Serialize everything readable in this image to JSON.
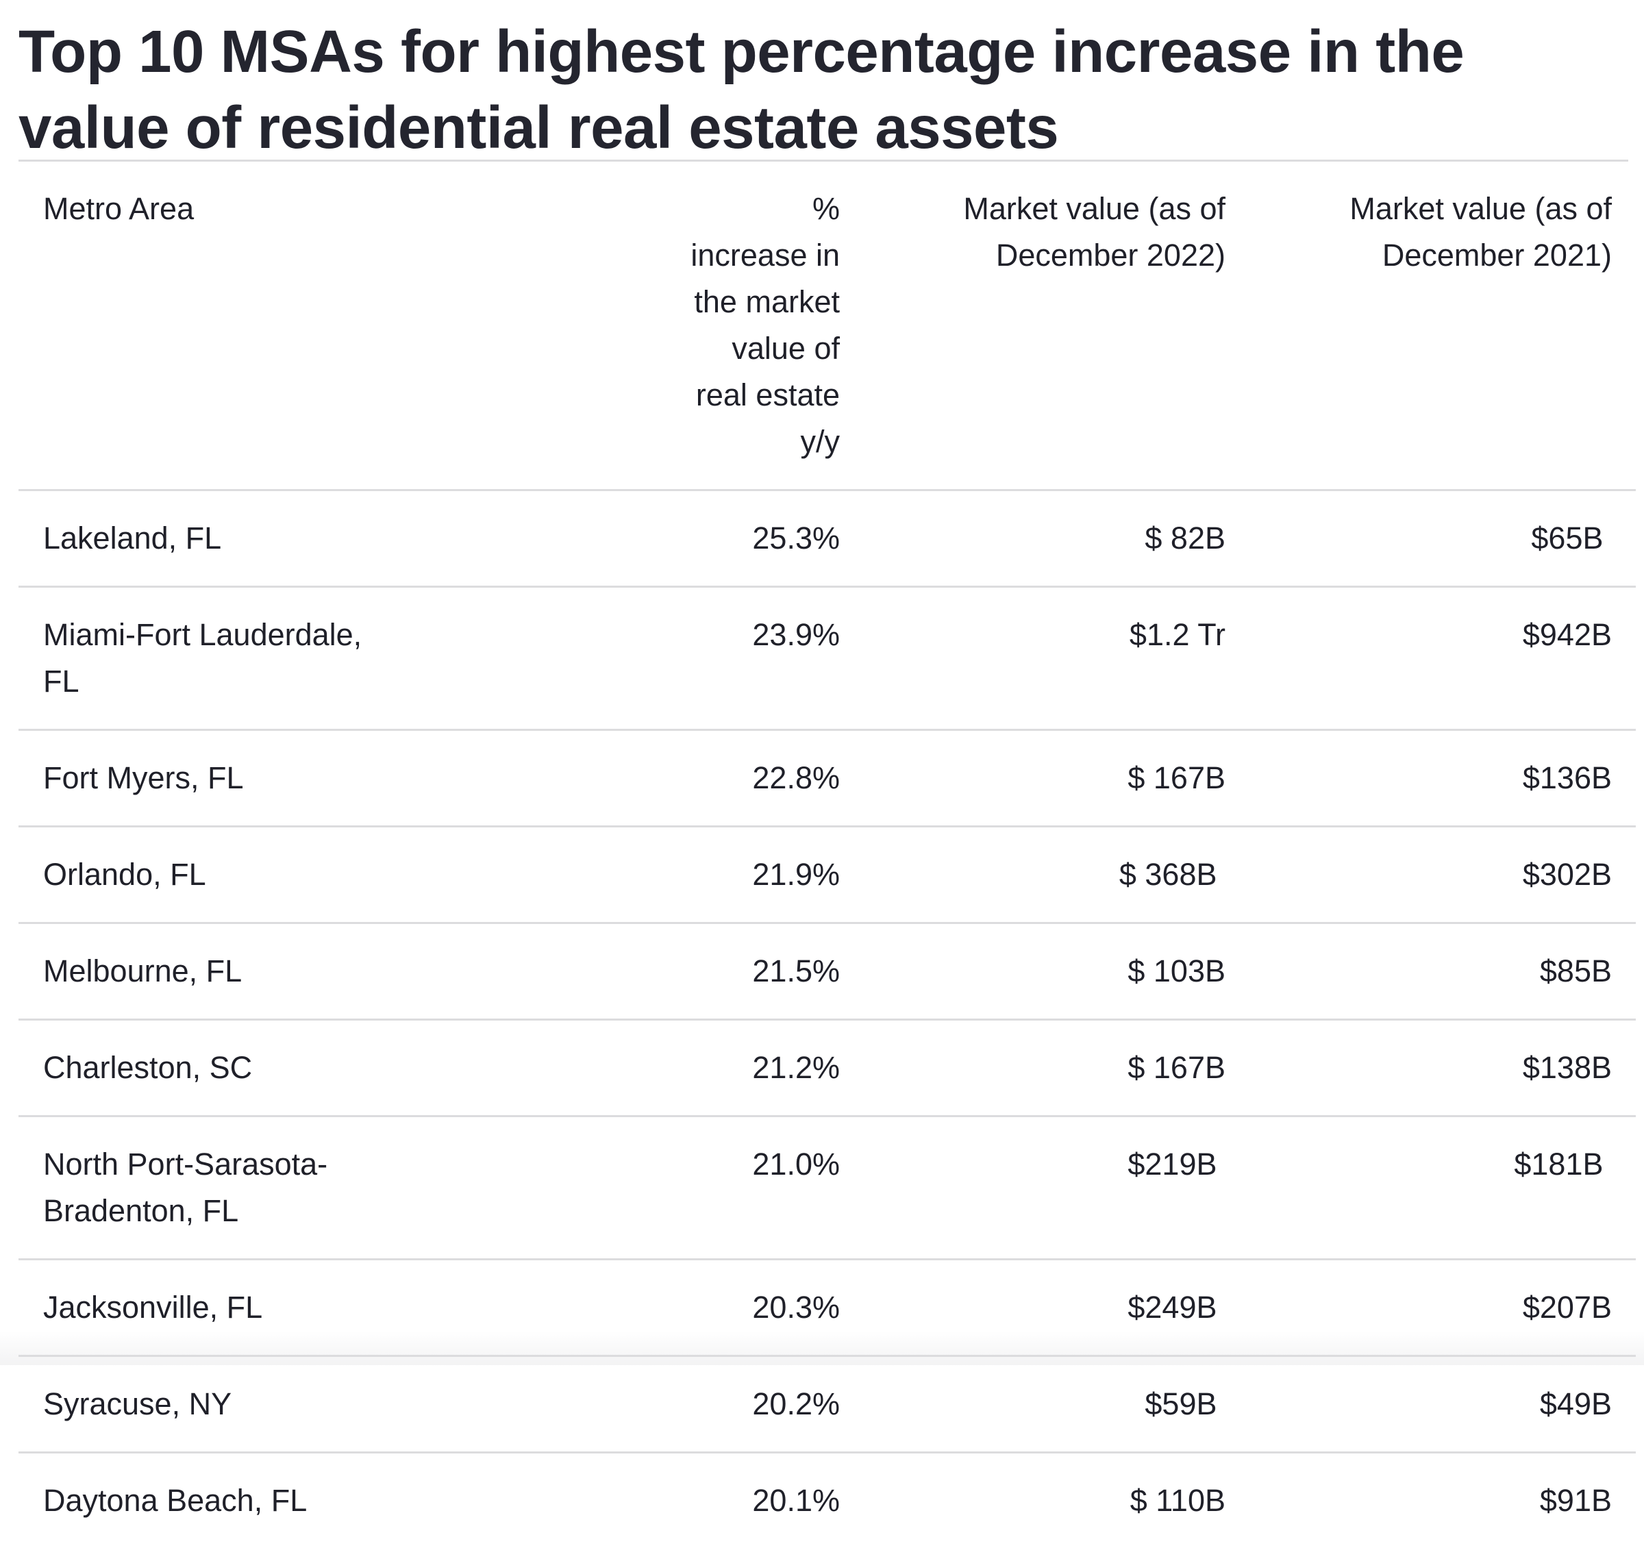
{
  "title": "Top 10 MSAs for highest percentage increase in the value of residential real estate assets",
  "table": {
    "headers": {
      "metro": "Metro Area",
      "pct": "% increase in the market value of real estate y/y",
      "value_2022": "Market value (as of December 2022)",
      "value_2021": "Market value (as of December 2021)"
    },
    "rows": [
      {
        "metro": "Lakeland, FL",
        "pct": "25.3%",
        "value_2022": "$ 82B",
        "value_2021": "$65B "
      },
      {
        "metro": "Miami-Fort Lauderdale, FL",
        "pct": "23.9%",
        "value_2022": "$1.2 Tr",
        "value_2021": "$942B"
      },
      {
        "metro": "Fort Myers, FL",
        "pct": "22.8%",
        "value_2022": "$ 167B",
        "value_2021": "$136B"
      },
      {
        "metro": "Orlando, FL",
        "pct": "21.9%",
        "value_2022": "$ 368B ",
        "value_2021": "$302B"
      },
      {
        "metro": "Melbourne, FL",
        "pct": "21.5%",
        "value_2022": "$ 103B",
        "value_2021": "$85B"
      },
      {
        "metro": "Charleston, SC",
        "pct": "21.2%",
        "value_2022": "$ 167B",
        "value_2021": "$138B"
      },
      {
        "metro": "North Port-Sarasota-Bradenton, FL",
        "pct": "21.0%",
        "value_2022": "$219B ",
        "value_2021": "$181B "
      },
      {
        "metro": "Jacksonville, FL",
        "pct": "20.3%",
        "value_2022": "$249B ",
        "value_2021": "$207B"
      },
      {
        "metro": "Syracuse, NY",
        "pct": "20.2%",
        "value_2022": "$59B ",
        "value_2021": "$49B"
      },
      {
        "metro": "Daytona Beach, FL",
        "pct": "20.1%",
        "value_2022": "$ 110B",
        "value_2021": "$91B"
      }
    ]
  },
  "colors": {
    "title_text": "#24252f",
    "body_text": "#1f2029",
    "divider": "#dcdcde",
    "background": "#ffffff"
  }
}
